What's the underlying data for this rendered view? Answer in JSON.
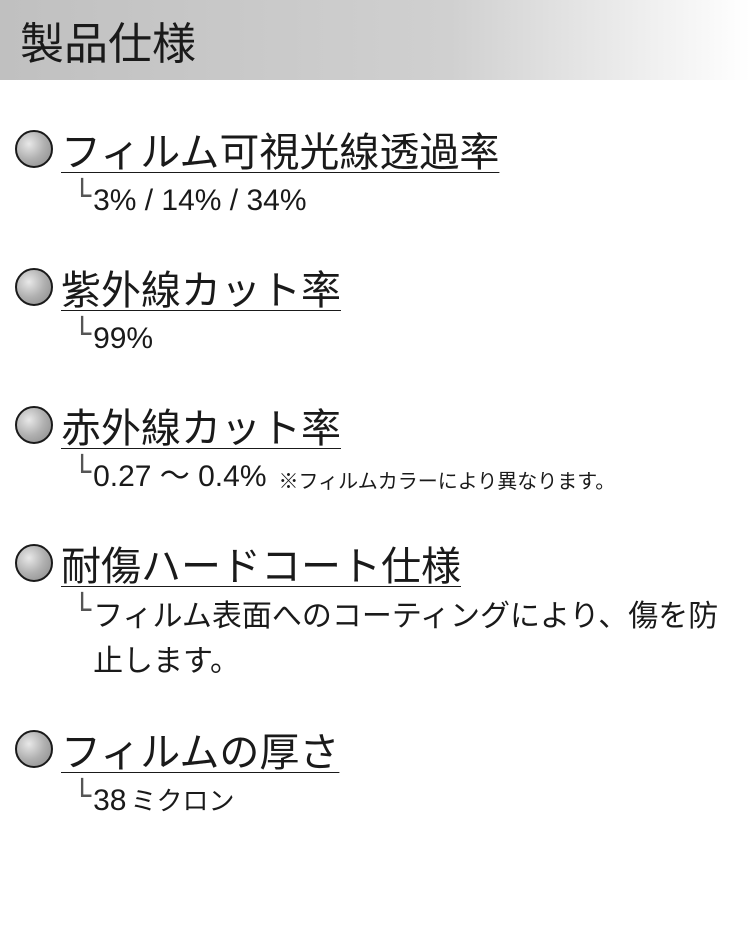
{
  "header": {
    "title": "製品仕様"
  },
  "specs": [
    {
      "title": "フィルム可視光線透過率",
      "value": "3% / 14% / 34%",
      "note": null
    },
    {
      "title": "紫外線カット率",
      "value": "99%",
      "note": null
    },
    {
      "title": "赤外線カット率",
      "value": "0.27 〜 0.4%",
      "note": "※フィルムカラーにより異なります。"
    },
    {
      "title": "耐傷ハードコート仕様",
      "value": "フィルム表面へのコーティングにより、傷を防止します。",
      "note": null,
      "multiline": true
    },
    {
      "title": "フィルムの厚さ",
      "value": "38",
      "unit": "ミクロン",
      "note": null
    }
  ],
  "styling": {
    "header_bg_gradient_start": "#c0c0c0",
    "header_bg_gradient_end": "#ffffff",
    "bullet_border_color": "#1a1a1a",
    "bullet_fill_gradient_start": "#e8e8e8",
    "bullet_fill_gradient_end": "#888888",
    "text_color": "#1a1a1a",
    "title_fontsize": 44,
    "spec_title_fontsize": 40,
    "spec_value_fontsize": 30,
    "spec_note_fontsize": 20
  }
}
